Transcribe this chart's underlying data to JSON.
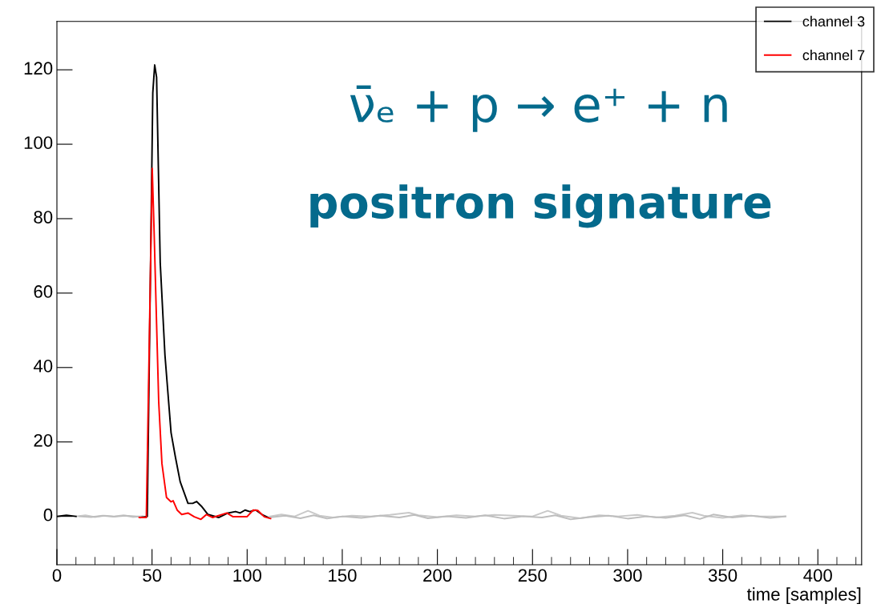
{
  "chart_data": {
    "type": "line",
    "xlabel": "time [samples]",
    "xlim": [
      0,
      423
    ],
    "ylim": [
      -13,
      133
    ],
    "xticks": [
      0,
      50,
      100,
      150,
      200,
      250,
      300,
      350,
      400
    ],
    "yticks": [
      0,
      20,
      40,
      60,
      80,
      100,
      120
    ],
    "grid": false,
    "legend": "top right",
    "line_style": "solid",
    "annotations": [
      "ν̄ₑ + p → e⁺ + n",
      "positron signature"
    ],
    "series": [
      {
        "color": "#c8c8c8",
        "x": [
          10,
          15,
          20,
          25,
          30,
          35,
          40,
          45,
          46,
          112,
          118,
          125,
          132,
          138,
          145,
          155,
          165,
          175,
          185,
          190,
          200,
          210,
          220,
          230,
          240,
          250,
          258,
          265,
          275,
          285,
          295,
          305,
          315,
          325,
          334,
          340,
          350,
          360,
          370,
          383
        ],
        "values": [
          0,
          0.3,
          -0.2,
          0.2,
          0,
          0.3,
          -0.2,
          0,
          null,
          0,
          0.5,
          0,
          1.5,
          0.2,
          -0.3,
          0.2,
          0,
          0.4,
          1,
          0.3,
          -0.2,
          0.3,
          0,
          0.4,
          0.2,
          0,
          1.5,
          0.2,
          -0.5,
          0.3,
          0,
          0.4,
          -0.3,
          0.2,
          1,
          0.2,
          -0.4,
          0.3,
          0,
          0
        ]
      },
      {
        "color": "#bdbdbd",
        "x": [
          12,
          18,
          24,
          30,
          36,
          42,
          45,
          46,
          112,
          120,
          128,
          135,
          142,
          150,
          160,
          170,
          180,
          188,
          195,
          205,
          215,
          225,
          235,
          245,
          255,
          262,
          270,
          280,
          290,
          300,
          310,
          320,
          330,
          338,
          345,
          355,
          365,
          375,
          383
        ],
        "values": [
          0,
          -0.2,
          0.2,
          -0.1,
          0.2,
          0,
          0,
          null,
          -0.3,
          0.2,
          -0.5,
          0.3,
          -0.6,
          0,
          -0.4,
          0.2,
          -0.3,
          0.4,
          -0.5,
          0,
          -0.4,
          0.3,
          -0.6,
          0,
          -0.3,
          0.3,
          -0.8,
          -0.2,
          0.2,
          -0.6,
          0,
          -0.4,
          0.3,
          -0.7,
          0.5,
          -0.3,
          0.2,
          -0.4,
          0
        ]
      },
      {
        "name": "channel 3",
        "color": "#000000",
        "x": [
          0,
          5,
          10,
          11,
          44,
          47.5,
          50.4,
          51.4,
          52.4,
          54.3,
          56.8,
          60,
          62.3,
          64.8,
          68.9,
          71.4,
          73.4,
          76.2,
          79.4,
          85,
          89.9,
          93.9,
          96.3,
          98.9,
          101.3,
          104.5,
          107.8,
          111
        ],
        "values": [
          0,
          0.3,
          0,
          null,
          -0.3,
          0,
          113.8,
          121.3,
          118,
          68.2,
          43.3,
          22.5,
          15.9,
          9.3,
          3.5,
          3.5,
          4,
          2.6,
          0.5,
          -0.3,
          0.9,
          1.3,
          0.9,
          1.7,
          1.3,
          1.7,
          0.5,
          -0.3
        ]
      },
      {
        "name": "channel 7",
        "color": "#ff0000",
        "x": [
          43.3,
          47,
          50.1,
          51.1,
          52.4,
          53.5,
          55.2,
          57.6,
          60,
          61.1,
          63.2,
          65.6,
          68.9,
          72.2,
          75.7,
          78.6,
          81.9,
          89.3,
          92.6,
          99.9,
          103.2,
          105.6,
          109,
          112.3
        ],
        "values": [
          -0.3,
          -0.3,
          93.5,
          76.4,
          51.6,
          30.9,
          14.2,
          5.1,
          3.9,
          4.2,
          1.7,
          0.5,
          0.9,
          -0.1,
          -0.8,
          0.5,
          -0.3,
          0.9,
          -0.1,
          -0.1,
          1.7,
          1.6,
          -0.1,
          -0.6
        ]
      }
    ]
  }
}
